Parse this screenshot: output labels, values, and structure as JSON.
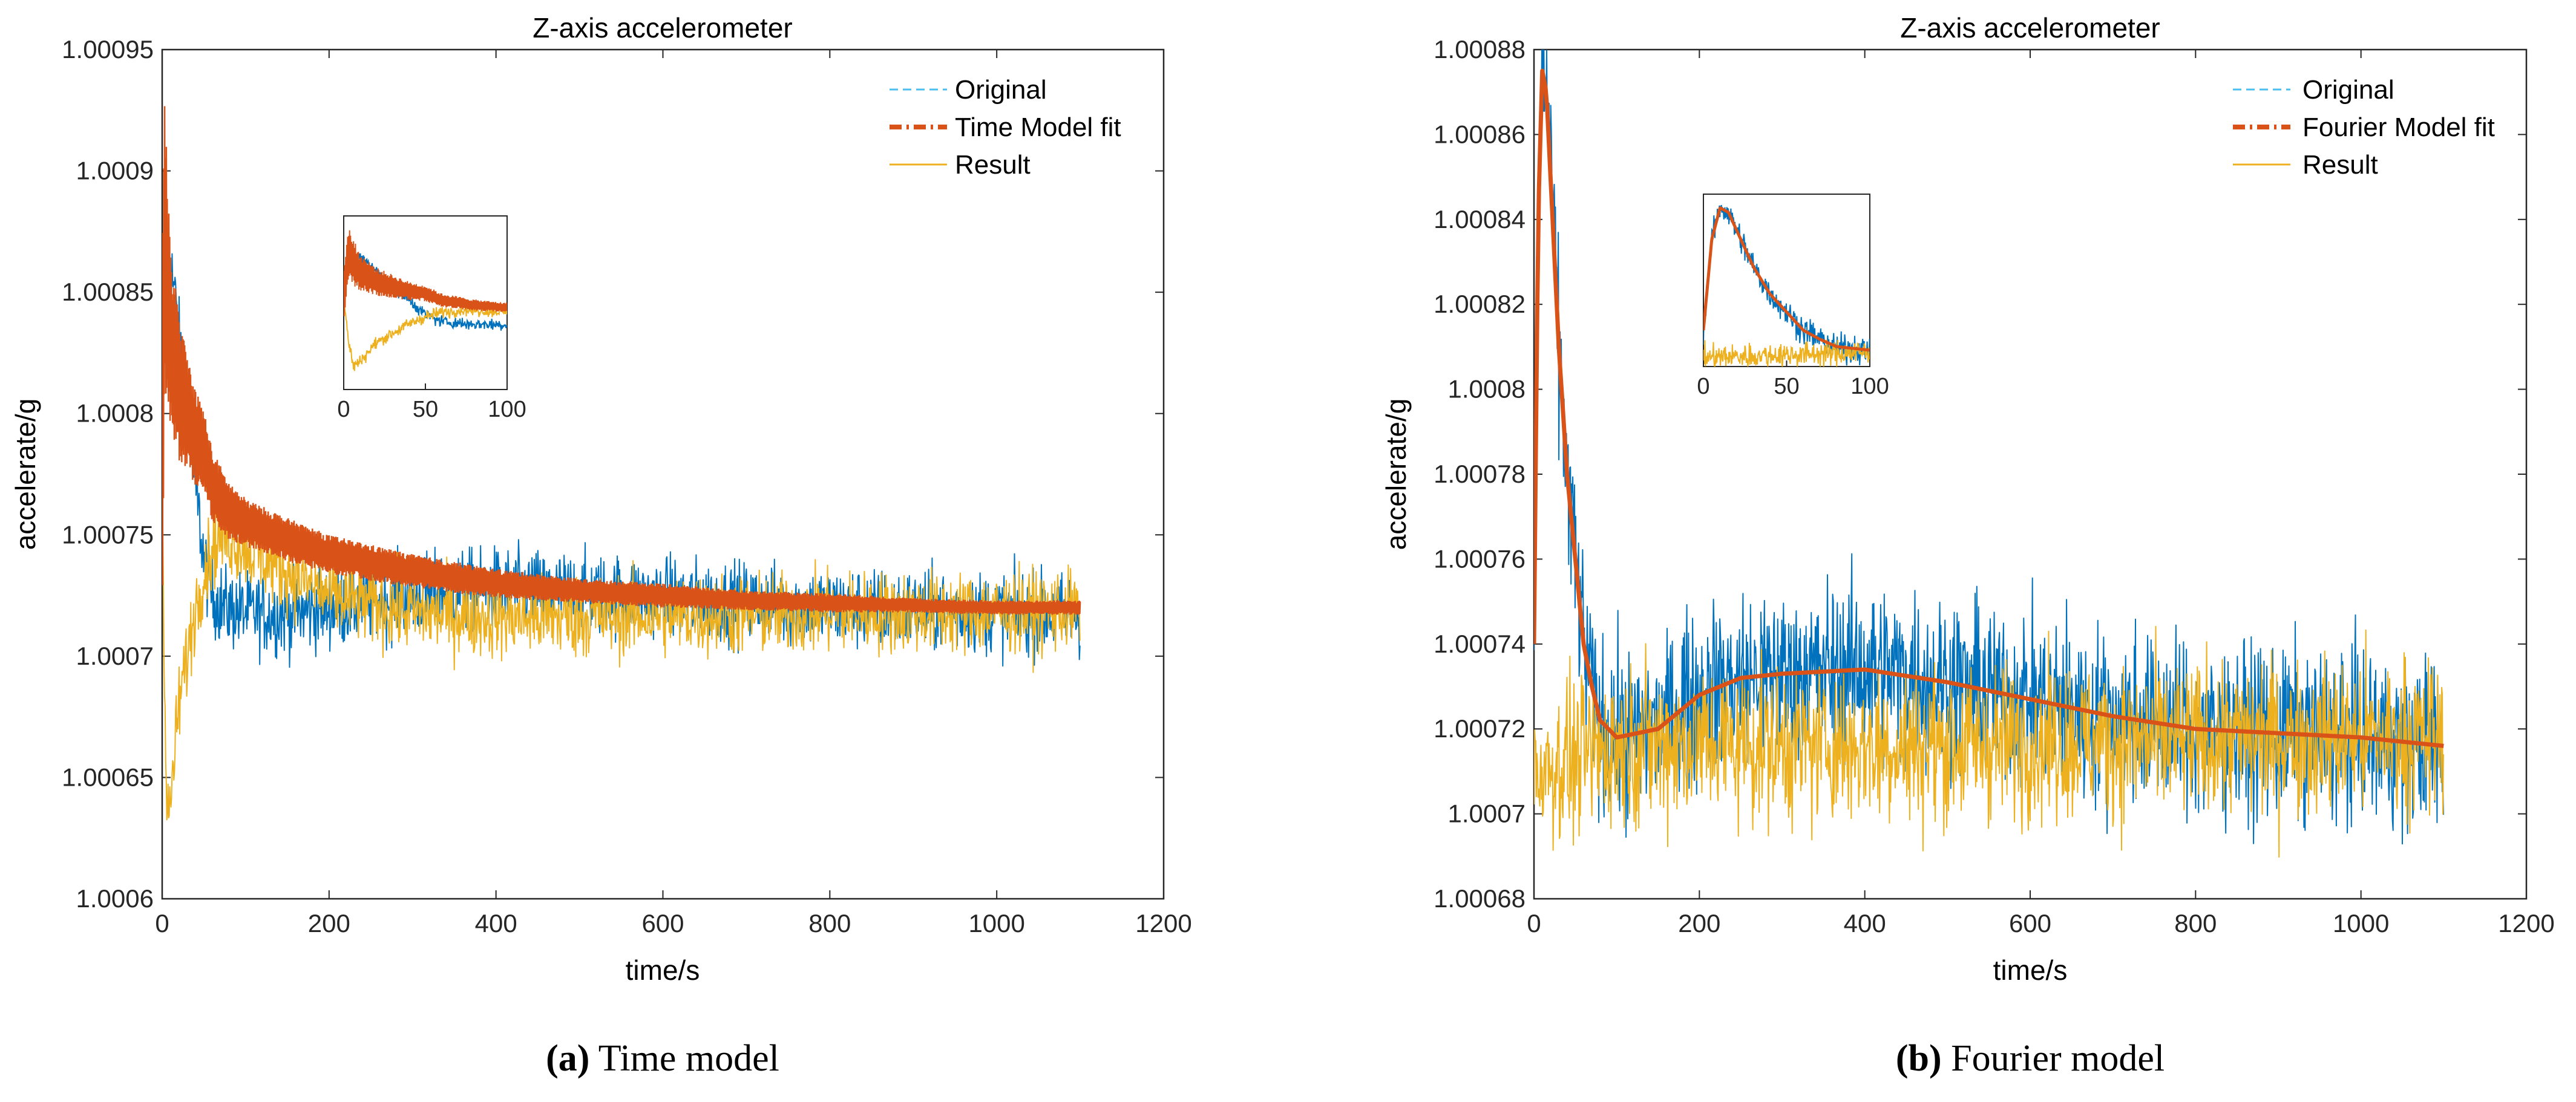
{
  "chart_data": [
    {
      "type": "line",
      "title": "Z-axis accelerometer",
      "xlabel": "time/s",
      "ylabel": "accelerate/g",
      "xlim": [
        0,
        1200
      ],
      "ylim": [
        1.0006,
        1.00095
      ],
      "xticks": [
        0,
        200,
        400,
        600,
        800,
        1000,
        1200
      ],
      "xtick_labels": [
        "0",
        "200",
        "400",
        "600",
        "800",
        "1000",
        "1200"
      ],
      "yticks": [
        1.0006,
        1.00065,
        1.0007,
        1.00075,
        1.0008,
        1.00085,
        1.0009,
        1.00095
      ],
      "ytick_labels": [
        "1.0006",
        "1.00065",
        "1.0007",
        "1.00075",
        "1.0008",
        "1.00085",
        "1.0009",
        "1.00095"
      ],
      "legend_position": "top-right",
      "series": [
        {
          "name": "Original",
          "style": "dashed",
          "color": "#0072BD",
          "x": [
            0,
            3,
            6,
            10,
            15,
            20,
            30,
            40,
            50,
            60,
            75,
            100,
            150,
            200,
            300,
            400,
            500,
            600,
            700,
            800,
            900,
            1000,
            1100
          ],
          "y": [
            1.00078,
            1.00087,
            1.000865,
            1.00086,
            1.00085,
            1.00083,
            1.0008,
            1.00077,
            1.00074,
            1.000725,
            1.00072,
            1.000718,
            1.000717,
            1.00072,
            1.000725,
            1.000728,
            1.000726,
            1.000724,
            1.000722,
            1.00072,
            1.000719,
            1.000718,
            1.000717
          ],
          "noise": 1.5e-05
        },
        {
          "name": "Time Model fit",
          "style": "dash-dot",
          "color": "#D95319",
          "x": [
            0,
            3,
            6,
            10,
            15,
            20,
            30,
            40,
            50,
            60,
            80,
            100,
            150,
            200,
            300,
            400,
            500,
            600,
            700,
            800,
            900,
            1000,
            1100
          ],
          "y": [
            1.00078,
            1.00087,
            1.00085,
            1.00083,
            1.00082,
            1.00081,
            1.0008,
            1.00079,
            1.000785,
            1.00077,
            1.00076,
            1.000755,
            1.000748,
            1.000742,
            1.000735,
            1.00073,
            1.000727,
            1.000725,
            1.000723,
            1.000722,
            1.000721,
            1.00072,
            1.00072
          ],
          "band": [
            7e-05,
            6e-05,
            5e-05,
            4e-05,
            3.5e-05,
            3e-05,
            2.5e-05,
            2e-05,
            1.7e-05,
            1.5e-05,
            1.2e-05,
            1e-05,
            9e-06,
            8e-06,
            7e-06,
            6e-06,
            5e-06,
            5e-06,
            4e-06,
            4e-06,
            3e-06,
            3e-06,
            3e-06
          ]
        },
        {
          "name": "Result",
          "style": "solid",
          "color": "#EDB120",
          "x": [
            0,
            3,
            6,
            10,
            15,
            20,
            30,
            40,
            50,
            60,
            75,
            100,
            150,
            200,
            300,
            400,
            500,
            600,
            700,
            800,
            900,
            1000,
            1100
          ],
          "y": [
            1.00078,
            1.00068,
            1.00063,
            1.00064,
            1.00066,
            1.00068,
            1.0007,
            1.00072,
            1.000735,
            1.000745,
            1.00075,
            1.000745,
            1.000735,
            1.000725,
            1.000718,
            1.000716,
            1.000716,
            1.000717,
            1.000717,
            1.000718,
            1.000718,
            1.000718,
            1.000719
          ],
          "noise": 1.5e-05
        }
      ],
      "inset": {
        "xlim": [
          0,
          100
        ],
        "xticks": [
          0,
          50,
          100
        ],
        "xtick_labels": [
          "0",
          "50",
          "100"
        ],
        "ylim": [
          1.00058,
          1.00095
        ]
      }
    },
    {
      "type": "line",
      "title": "Z-axis accelerometer",
      "xlabel": "time/s",
      "ylabel": "accelerate/g",
      "xlim": [
        0,
        1200
      ],
      "ylim": [
        1.00068,
        1.00088
      ],
      "xticks": [
        0,
        200,
        400,
        600,
        800,
        1000,
        1200
      ],
      "xtick_labels": [
        "0",
        "200",
        "400",
        "600",
        "800",
        "1000",
        "1200"
      ],
      "yticks": [
        1.00068,
        1.0007,
        1.00072,
        1.00074,
        1.00076,
        1.00078,
        1.0008,
        1.00082,
        1.00084,
        1.00086,
        1.00088
      ],
      "ytick_labels": [
        "1.00068",
        "1.0007",
        "1.00072",
        "1.00074",
        "1.00076",
        "1.00078",
        "1.0008",
        "1.00082",
        "1.00084",
        "1.00086",
        "1.00088"
      ],
      "legend_position": "top-right",
      "series": [
        {
          "name": "Original",
          "style": "dashed",
          "color": "#0072BD",
          "x": [
            0,
            5,
            10,
            15,
            20,
            30,
            40,
            50,
            60,
            70,
            80,
            100,
            150,
            200,
            250,
            300,
            400,
            500,
            600,
            700,
            800,
            900,
            1000,
            1100
          ],
          "y": [
            1.00074,
            1.00084,
            1.000876,
            1.00087,
            1.00085,
            1.00081,
            1.00078,
            1.00076,
            1.00074,
            1.00073,
            1.00072,
            1.000718,
            1.00072,
            1.000728,
            1.000732,
            1.000733,
            1.000734,
            1.000731,
            1.000727,
            1.000723,
            1.00072,
            1.000719,
            1.000718,
            1.000716
          ],
          "noise": 1.8e-05
        },
        {
          "name": "Fourier Model fit",
          "style": "dash-dot",
          "color": "#D95319",
          "x": [
            0,
            5,
            10,
            15,
            20,
            30,
            40,
            50,
            60,
            70,
            80,
            100,
            150,
            200,
            250,
            300,
            400,
            500,
            600,
            700,
            800,
            900,
            1000,
            1100
          ],
          "y": [
            1.00074,
            1.00084,
            1.000875,
            1.00087,
            1.00085,
            1.00081,
            1.00078,
            1.00076,
            1.00074,
            1.00073,
            1.000722,
            1.000718,
            1.00072,
            1.000728,
            1.000732,
            1.000733,
            1.000734,
            1.000731,
            1.000727,
            1.000723,
            1.00072,
            1.000719,
            1.000718,
            1.000716
          ]
        },
        {
          "name": "Result",
          "style": "solid",
          "color": "#EDB120",
          "x": [
            0,
            100,
            200,
            300,
            400,
            500,
            600,
            700,
            800,
            900,
            1000,
            1100
          ],
          "y": [
            1.00071,
            1.000716,
            1.000717,
            1.000716,
            1.000716,
            1.000716,
            1.000717,
            1.000717,
            1.000717,
            1.000718,
            1.000718,
            1.000718
          ],
          "noise": 1.6e-05
        }
      ],
      "inset": {
        "xlim": [
          0,
          100
        ],
        "xticks": [
          0,
          50,
          100
        ],
        "xtick_labels": [
          "0",
          "50",
          "100"
        ],
        "ylim": [
          1.0007,
          1.00089
        ]
      }
    }
  ],
  "captions": [
    {
      "letter": "(a)",
      "text": "Time model"
    },
    {
      "letter": "(b)",
      "text": "Fourier model"
    }
  ]
}
